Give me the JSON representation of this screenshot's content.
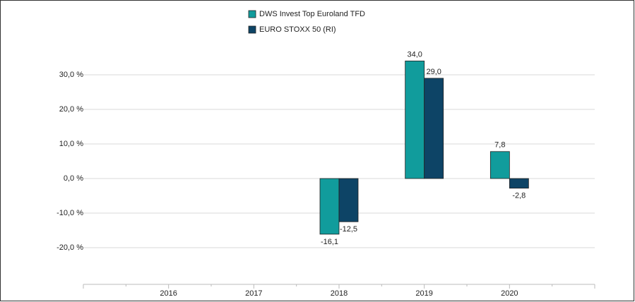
{
  "chart_data": {
    "type": "bar",
    "categories": [
      "2016",
      "2017",
      "2018",
      "2019",
      "2020"
    ],
    "series": [
      {
        "name": "DWS Invest Top Euroland  TFD",
        "color": "#119c9c",
        "values": [
          null,
          null,
          -16.1,
          34.0,
          7.8
        ],
        "value_labels": [
          null,
          null,
          "-16,1",
          "34,0",
          "7,8"
        ]
      },
      {
        "name": "EURO STOXX 50 (RI)",
        "color": "#0d4466",
        "values": [
          null,
          null,
          -12.5,
          29.0,
          -2.8
        ],
        "value_labels": [
          null,
          null,
          "-12,5",
          "29,0",
          "-2,8"
        ]
      }
    ],
    "ylim": [
      -30,
      40
    ],
    "yticks": [
      {
        "value": -20,
        "label": "-20,0 %"
      },
      {
        "value": -10,
        "label": "-10,0 %"
      },
      {
        "value": 0,
        "label": "0,0 %"
      },
      {
        "value": 10,
        "label": "10,0 %"
      },
      {
        "value": 20,
        "label": "20,0 %"
      },
      {
        "value": 30,
        "label": "30,0 %"
      }
    ],
    "grid": true,
    "legend": "top"
  }
}
